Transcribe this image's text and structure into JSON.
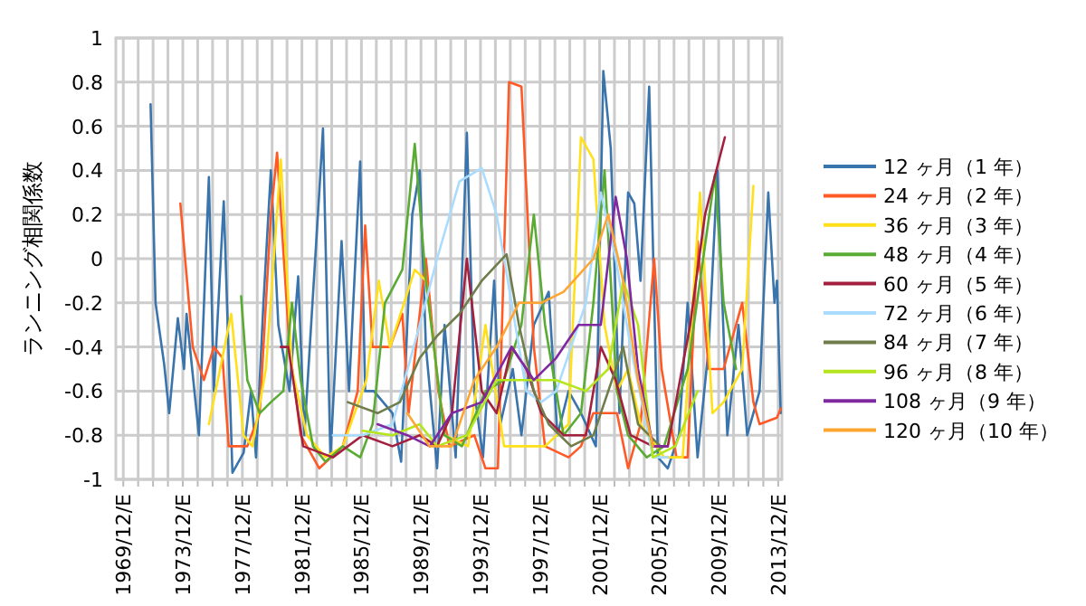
{
  "chart_data": {
    "type": "line",
    "ylabel": "ランニング相関係数",
    "xlim": [
      "1969-06",
      "2014-03"
    ],
    "ylim": [
      -1,
      1
    ],
    "yticks": [
      -1,
      -0.8,
      -0.6,
      -0.4,
      -0.2,
      0,
      0.2,
      0.4,
      0.6,
      0.8,
      1
    ],
    "xticks": [
      {
        "value": "1969-12",
        "label": "1969/12/E"
      },
      {
        "value": "1970-12",
        "label": null
      },
      {
        "value": "1971-12",
        "label": null
      },
      {
        "value": "1972-12",
        "label": null
      },
      {
        "value": "1973-12",
        "label": "1973/12/E"
      },
      {
        "value": "1974-12",
        "label": null
      },
      {
        "value": "1975-12",
        "label": null
      },
      {
        "value": "1976-12",
        "label": null
      },
      {
        "value": "1977-12",
        "label": "1977/12/E"
      },
      {
        "value": "1978-12",
        "label": null
      },
      {
        "value": "1979-12",
        "label": null
      },
      {
        "value": "1980-12",
        "label": null
      },
      {
        "value": "1981-12",
        "label": "1981/12/E"
      },
      {
        "value": "1982-12",
        "label": null
      },
      {
        "value": "1983-12",
        "label": null
      },
      {
        "value": "1984-12",
        "label": null
      },
      {
        "value": "1985-12",
        "label": "1985/12/E"
      },
      {
        "value": "1986-12",
        "label": null
      },
      {
        "value": "1987-12",
        "label": null
      },
      {
        "value": "1988-12",
        "label": null
      },
      {
        "value": "1989-12",
        "label": "1989/12/E"
      },
      {
        "value": "1990-12",
        "label": null
      },
      {
        "value": "1991-12",
        "label": null
      },
      {
        "value": "1992-12",
        "label": null
      },
      {
        "value": "1993-12",
        "label": "1993/12/E"
      },
      {
        "value": "1994-12",
        "label": null
      },
      {
        "value": "1995-12",
        "label": null
      },
      {
        "value": "1996-12",
        "label": null
      },
      {
        "value": "1997-12",
        "label": "1997/12/E"
      },
      {
        "value": "1998-12",
        "label": null
      },
      {
        "value": "1999-12",
        "label": null
      },
      {
        "value": "2000-12",
        "label": null
      },
      {
        "value": "2001-12",
        "label": "2001/12/E"
      },
      {
        "value": "2002-12",
        "label": null
      },
      {
        "value": "2003-12",
        "label": null
      },
      {
        "value": "2004-12",
        "label": null
      },
      {
        "value": "2005-12",
        "label": "2005/12/E"
      },
      {
        "value": "2006-12",
        "label": null
      },
      {
        "value": "2007-12",
        "label": null
      },
      {
        "value": "2008-12",
        "label": null
      },
      {
        "value": "2009-12",
        "label": "2009/12/E"
      },
      {
        "value": "2010-12",
        "label": null
      },
      {
        "value": "2011-12",
        "label": null
      },
      {
        "value": "2012-12",
        "label": null
      },
      {
        "value": "2013-12",
        "label": "2013/12/E"
      }
    ],
    "grid": true,
    "legend": "right",
    "marker": "none",
    "line_style": "solid",
    "series": [
      {
        "name": "12 ヶ月（1 年）",
        "color": "#3a74ad",
        "x": [
          "1971-10",
          "1972-02",
          "1972-09",
          "1973-01",
          "1973-08",
          "1974-01",
          "1974-03",
          "1975-01",
          "1975-09",
          "1976-01",
          "1976-09",
          "1977-04",
          "1978-01",
          "1978-07",
          "1978-11",
          "1979-05",
          "1979-11",
          "1980-05",
          "1981-02",
          "1981-09",
          "1982-02",
          "1983-02",
          "1983-05",
          "1983-11",
          "1984-08",
          "1985-02",
          "1985-11",
          "1986-03",
          "1986-10",
          "1988-01",
          "1988-08",
          "1989-05",
          "1989-11",
          "1990-04",
          "1991-01",
          "1991-07",
          "1992-04",
          "1993-01",
          "1993-07",
          "1994-02",
          "1994-11",
          "1995-04",
          "1996-02",
          "1996-09",
          "1997-07",
          "1998-07",
          "1999-02",
          "1999-11",
          "2000-09",
          "2001-09",
          "2002-03",
          "2002-09",
          "2003-04",
          "2003-11",
          "2004-04",
          "2004-09",
          "2005-04",
          "2005-11",
          "2006-07",
          "2007-04",
          "2007-11",
          "2008-07",
          "2009-04",
          "2009-11",
          "2010-07",
          "2011-04",
          "2011-11",
          "2012-09",
          "2013-04",
          "2013-09",
          "2013-11",
          "2014-02"
        ],
        "values": [
          0.7,
          -0.2,
          -0.48,
          -0.7,
          -0.27,
          -0.5,
          -0.25,
          -0.8,
          0.37,
          -0.6,
          0.26,
          -0.97,
          -0.88,
          -0.6,
          -0.9,
          -0.2,
          0.4,
          -0.3,
          -0.6,
          -0.08,
          -0.8,
          0.3,
          0.59,
          -0.9,
          0.08,
          -0.6,
          0.44,
          -0.6,
          -0.6,
          -0.7,
          -0.92,
          0.2,
          0.4,
          -0.4,
          -0.95,
          -0.3,
          -0.9,
          0.57,
          -0.6,
          -0.9,
          -0.1,
          -0.75,
          -0.5,
          -0.8,
          -0.3,
          -0.15,
          -0.8,
          -0.6,
          -0.7,
          -0.85,
          0.85,
          0.5,
          -0.7,
          0.3,
          0.25,
          -0.1,
          0.78,
          -0.9,
          -0.95,
          -0.8,
          -0.2,
          -0.9,
          -0.4,
          0.4,
          -0.8,
          -0.3,
          -0.8,
          -0.6,
          0.3,
          -0.2,
          -0.1,
          -0.7
        ]
      },
      {
        "name": "24 ヶ月（2 年）",
        "color": "#ff5a26",
        "x": [
          "1973-10",
          "1974-08",
          "1975-05",
          "1976-01",
          "1976-08",
          "1977-01",
          "1978-04",
          "1979-02",
          "1979-11",
          "1980-04",
          "1981-02",
          "1981-11",
          "1983-02",
          "1984-09",
          "1985-09",
          "1986-03",
          "1986-09",
          "1987-02",
          "1987-11",
          "1988-09",
          "1989-02",
          "1990-04",
          "1991-02",
          "1991-11",
          "1993-07",
          "1994-04",
          "1995-02",
          "1995-11",
          "1996-09",
          "1997-07",
          "1998-04",
          "1999-11",
          "2000-09",
          "2001-07",
          "2003-02",
          "2003-11",
          "2004-09",
          "2005-08",
          "2006-02",
          "2007-02",
          "2007-11",
          "2008-07",
          "2009-04",
          "2010-04",
          "2011-07",
          "2012-04",
          "2012-09",
          "2013-11",
          "2014-02"
        ],
        "values": [
          0.25,
          -0.4,
          -0.55,
          -0.4,
          -0.45,
          -0.85,
          -0.85,
          -0.7,
          0.2,
          0.48,
          -0.4,
          -0.8,
          -0.95,
          -0.85,
          -0.6,
          0.15,
          -0.4,
          -0.4,
          -0.4,
          -0.25,
          -0.7,
          0.0,
          -0.6,
          -0.85,
          -0.8,
          -0.95,
          -0.95,
          0.8,
          0.78,
          -0.4,
          -0.85,
          -0.9,
          -0.85,
          -0.7,
          -0.7,
          -0.95,
          -0.75,
          0.0,
          -0.5,
          -0.9,
          -0.9,
          0.08,
          -0.5,
          -0.5,
          -0.2,
          -0.65,
          -0.75,
          -0.72,
          -0.68
        ]
      },
      {
        "name": "36 ヶ月（3 年）",
        "color": "#ffe01b",
        "x": [
          "1975-09",
          "1977-03",
          "1978-01",
          "1978-08",
          "1979-07",
          "1980-07",
          "1981-04",
          "1982-04",
          "1983-07",
          "1984-09",
          "1986-04",
          "1987-02",
          "1987-11",
          "1989-07",
          "1990-04",
          "1991-07",
          "1993-02",
          "1994-04",
          "1995-07",
          "1996-09",
          "1998-04",
          "1999-11",
          "2000-09",
          "2001-07",
          "2002-04",
          "2003-02",
          "2003-11",
          "2004-09",
          "2006-04",
          "2007-07",
          "2008-09",
          "2009-07",
          "2010-04",
          "2011-07",
          "2012-04"
        ],
        "values": [
          -0.75,
          -0.25,
          -0.8,
          -0.85,
          -0.5,
          0.45,
          -0.5,
          -0.8,
          -0.9,
          -0.85,
          -0.55,
          -0.1,
          -0.4,
          -0.05,
          -0.1,
          -0.8,
          -0.85,
          -0.3,
          -0.85,
          -0.85,
          -0.85,
          -0.75,
          0.55,
          0.45,
          -0.3,
          -0.6,
          -0.5,
          -0.75,
          -0.9,
          -0.9,
          0.3,
          -0.7,
          -0.65,
          -0.5,
          0.33
        ]
      },
      {
        "name": "48 ヶ月（4 年）",
        "color": "#5aab33",
        "x": [
          "1977-11",
          "1978-04",
          "1979-02",
          "1979-11",
          "1980-09",
          "1981-04",
          "1981-11",
          "1982-09",
          "1983-07",
          "1984-09",
          "1985-11",
          "1986-09",
          "1987-07",
          "1988-09",
          "1989-07",
          "1990-04",
          "1991-07",
          "1992-09",
          "1994-04",
          "1995-07",
          "1996-09",
          "1997-07",
          "1998-04",
          "1999-07",
          "2000-09",
          "2001-07",
          "2002-04",
          "2003-02",
          "2003-11",
          "2005-02",
          "2006-04",
          "2007-11",
          "2009-02",
          "2009-09",
          "2010-04",
          "2011-02"
        ],
        "values": [
          -0.17,
          -0.55,
          -0.7,
          -0.65,
          -0.6,
          -0.2,
          -0.55,
          -0.85,
          -0.92,
          -0.85,
          -0.9,
          -0.75,
          -0.2,
          -0.05,
          0.52,
          -0.1,
          -0.8,
          -0.85,
          -0.6,
          -0.55,
          -0.3,
          0.2,
          -0.3,
          -0.8,
          -0.7,
          -0.2,
          0.4,
          -0.6,
          -0.8,
          -0.9,
          -0.85,
          -0.5,
          0.1,
          0.38,
          -0.2,
          -0.5
        ]
      },
      {
        "name": "60 ヶ月（5 年）",
        "color": "#a3203f",
        "x": [
          "1980-07",
          "1981-01",
          "1982-01",
          "1984-01",
          "1986-01",
          "1988-01",
          "1989-11",
          "1991-01",
          "1992-01",
          "1993-01",
          "1994-01",
          "1995-01",
          "1996-01",
          "1997-01",
          "1998-01",
          "1999-07",
          "2001-01",
          "2002-01",
          "2003-01",
          "2004-01",
          "2005-07",
          "2006-07",
          "2008-01",
          "2009-01",
          "2010-05"
        ],
        "values": [
          -0.4,
          -0.4,
          -0.85,
          -0.9,
          -0.8,
          -0.85,
          -0.8,
          -0.85,
          -0.7,
          0.0,
          -0.6,
          -0.7,
          -0.4,
          -0.5,
          -0.7,
          -0.8,
          -0.8,
          -0.4,
          -0.55,
          -0.8,
          -0.85,
          -0.85,
          -0.3,
          0.2,
          0.55
        ]
      },
      {
        "name": "72 ヶ月（6 年）",
        "color": "#a9dcff",
        "x": [
          "1984-01",
          "1986-01",
          "1988-01",
          "1989-11",
          "1991-01",
          "1992-07",
          "1994-01",
          "1995-01",
          "1996-01",
          "1997-01",
          "1998-01",
          "1999-01",
          "2001-01",
          "2002-01",
          "2003-01",
          "2004-01",
          "2005-07",
          "2006-07"
        ],
        "values": [
          -0.8,
          -0.8,
          -0.75,
          -0.3,
          0.0,
          0.35,
          0.41,
          0.2,
          -0.2,
          -0.6,
          -0.65,
          -0.6,
          -0.2,
          0.3,
          0.0,
          -0.4,
          -0.9,
          -0.9
        ]
      },
      {
        "name": "84 ヶ月（7 年）",
        "color": "#6f7d4a",
        "x": [
          "1985-01",
          "1987-01",
          "1988-07",
          "1989-11",
          "1991-01",
          "1992-07",
          "1994-01",
          "1995-09",
          "1996-07",
          "1997-07",
          "1998-07",
          "2000-01",
          "2001-07",
          "2002-07",
          "2003-07",
          "2004-07",
          "2006-01"
        ],
        "values": [
          -0.65,
          -0.7,
          -0.65,
          -0.45,
          -0.35,
          -0.25,
          -0.1,
          0.02,
          -0.3,
          -0.6,
          -0.75,
          -0.85,
          -0.8,
          -0.6,
          -0.4,
          -0.75,
          -0.85
        ]
      },
      {
        "name": "96 ヶ月（8 年）",
        "color": "#b5e61d",
        "x": [
          "1986-01",
          "1988-01",
          "1989-11",
          "1991-01",
          "1993-01",
          "1995-01",
          "1997-01",
          "1999-01",
          "2001-01",
          "2002-07",
          "2003-07",
          "2004-07",
          "2005-07",
          "2007-01",
          "2008-07"
        ],
        "values": [
          -0.78,
          -0.8,
          -0.75,
          -0.85,
          -0.8,
          -0.55,
          -0.55,
          -0.55,
          -0.6,
          -0.5,
          -0.1,
          -0.3,
          -0.9,
          -0.85,
          -0.6
        ]
      },
      {
        "name": "108 ヶ月（9 年）",
        "color": "#7f28a0",
        "x": [
          "1987-01",
          "1989-01",
          "1990-07",
          "1992-01",
          "1994-01",
          "1996-01",
          "1997-07",
          "1999-01",
          "2000-07",
          "2002-01",
          "2003-01",
          "2003-10",
          "2004-07",
          "2005-07",
          "2006-07"
        ],
        "values": [
          -0.75,
          -0.8,
          -0.85,
          -0.7,
          -0.65,
          -0.4,
          -0.55,
          -0.45,
          -0.3,
          -0.3,
          0.28,
          0.0,
          -0.5,
          -0.85,
          -0.85
        ]
      },
      {
        "name": "120 ヶ月（10 年）",
        "color": "#ffa532",
        "x": [
          "1989-01",
          "1990-07",
          "1992-01",
          "1993-07",
          "1995-01",
          "1996-07",
          "1998-01",
          "1999-07",
          "2001-07",
          "2002-07",
          "2003-07",
          "2004-07",
          "2005-07"
        ],
        "values": [
          -0.7,
          -0.85,
          -0.85,
          -0.55,
          -0.4,
          -0.2,
          -0.2,
          -0.15,
          0.0,
          0.2,
          -0.1,
          -0.55,
          -0.85
        ]
      }
    ]
  }
}
